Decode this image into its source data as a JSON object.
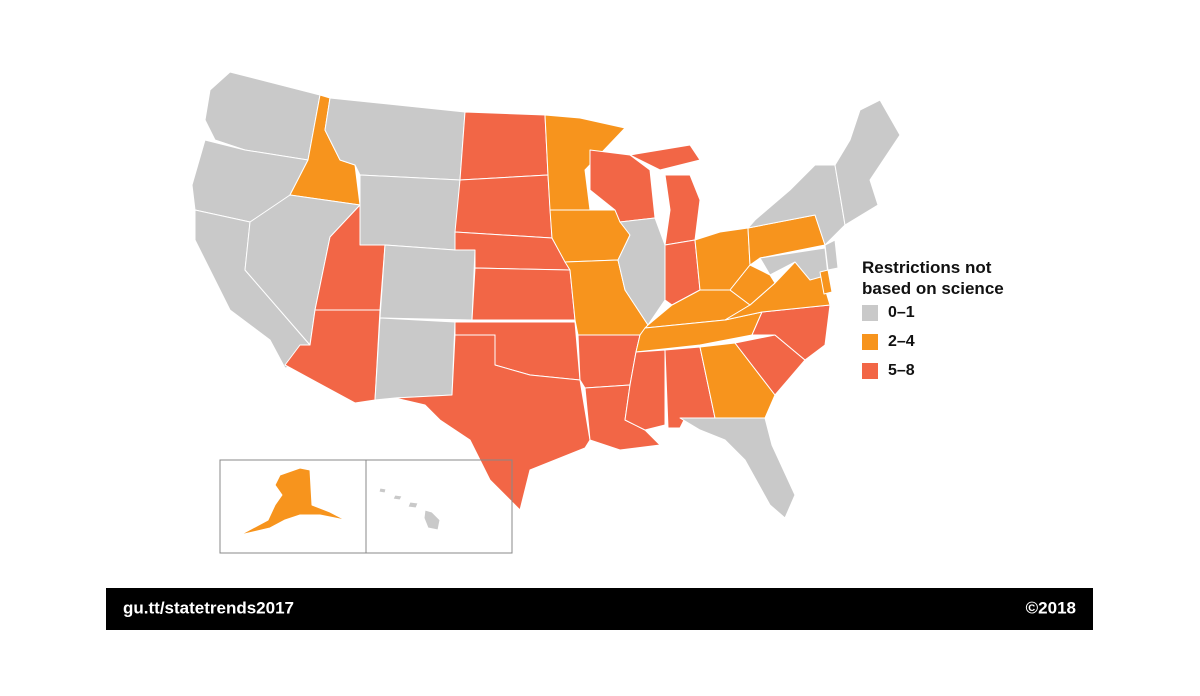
{
  "legend": {
    "title": [
      "Restrictions not",
      "based on science"
    ],
    "items": [
      {
        "label": "0–1",
        "color": "#c9c9c9"
      },
      {
        "label": "2–4",
        "color": "#f7941d"
      },
      {
        "label": "5–8",
        "color": "#f26646"
      }
    ]
  },
  "footer": {
    "url": "gu.tt/statetrends2017",
    "copyright": "©2018"
  }
}
